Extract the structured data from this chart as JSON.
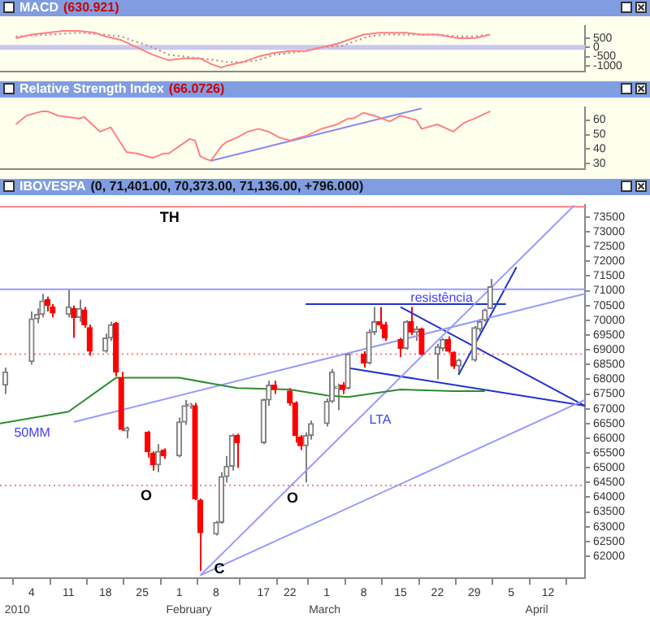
{
  "chart_data": [
    {
      "type": "line",
      "title": "MACD",
      "subtitle": "(630.921)",
      "tick_labels": "y",
      "xlim": [
        "2009-12-29",
        "2010-04-19"
      ],
      "ylim": [
        -1300,
        1150
      ],
      "yticks": [
        -1000,
        -500,
        0,
        500
      ],
      "ref_lines": [
        {
          "axis": "y",
          "value": 0,
          "color": "#c8c8f0"
        }
      ],
      "series": [
        {
          "type": "line",
          "color": "#ff8080",
          "x": [
            "2010-01-01",
            "2010-01-04",
            "2010-01-07",
            "2010-01-10",
            "2010-01-13",
            "2010-01-16",
            "2010-01-18",
            "2010-01-21",
            "2010-01-24",
            "2010-01-27",
            "2010-01-30",
            "2010-02-02",
            "2010-02-05",
            "2010-02-07",
            "2010-02-09",
            "2010-02-10",
            "2010-02-13",
            "2010-02-16",
            "2010-02-19",
            "2010-02-22",
            "2010-02-25",
            "2010-02-28",
            "2010-03-03",
            "2010-03-05",
            "2010-03-08",
            "2010-03-11",
            "2010-03-14",
            "2010-03-16",
            "2010-03-19",
            "2010-03-22",
            "2010-03-26",
            "2010-03-29",
            "2010-04-01"
          ],
          "values": [
            500,
            700,
            800,
            900,
            900,
            800,
            600,
            400,
            0,
            -400,
            -700,
            -600,
            -600,
            -900,
            -1100,
            -1000,
            -800,
            -500,
            -300,
            -200,
            -200,
            0,
            200,
            400,
            700,
            800,
            800,
            800,
            700,
            700,
            500,
            500,
            700
          ]
        },
        {
          "type": "line",
          "color": "#c08080",
          "line_style": "dotted",
          "x": [
            "2010-01-01",
            "2010-01-07",
            "2010-01-13",
            "2010-01-18",
            "2010-01-21",
            "2010-01-24",
            "2010-01-27",
            "2010-01-30",
            "2010-02-02",
            "2010-02-05",
            "2010-02-08",
            "2010-02-10",
            "2010-02-13",
            "2010-02-16",
            "2010-02-19",
            "2010-02-22",
            "2010-02-25",
            "2010-02-28",
            "2010-03-04",
            "2010-03-06",
            "2010-03-09",
            "2010-03-12",
            "2010-03-15",
            "2010-03-18",
            "2010-03-22",
            "2010-03-26",
            "2010-03-29",
            "2010-04-01"
          ],
          "values": [
            600,
            700,
            800,
            700,
            600,
            300,
            0,
            -400,
            -500,
            -600,
            -700,
            -800,
            -800,
            -700,
            -400,
            -300,
            -200,
            0,
            100,
            300,
            600,
            700,
            700,
            700,
            700,
            600,
            600,
            700
          ]
        }
      ]
    },
    {
      "type": "line",
      "title": "Relative Strength Index",
      "subtitle": "(66.0726)",
      "tick_labels": "y",
      "xlim": [
        "2009-12-29",
        "2010-04-19"
      ],
      "ylim": [
        26.5,
        68.5
      ],
      "yticks": [
        30,
        40,
        50,
        60
      ],
      "series": [
        {
          "type": "line",
          "color": "#ff8080",
          "x": [
            "2010-01-01",
            "2010-01-03",
            "2010-01-06",
            "2010-01-07",
            "2010-01-09",
            "2010-01-11",
            "2010-01-13",
            "2010-01-14",
            "2010-01-17",
            "2010-01-19",
            "2010-01-22",
            "2010-01-24",
            "2010-01-27",
            "2010-01-29",
            "2010-01-30",
            "2010-02-01",
            "2010-02-03",
            "2010-02-04",
            "2010-02-05",
            "2010-02-07",
            "2010-02-09",
            "2010-02-10",
            "2010-02-12",
            "2010-02-14",
            "2010-02-16",
            "2010-02-18",
            "2010-02-20",
            "2010-02-22",
            "2010-02-25",
            "2010-02-28",
            "2010-03-03",
            "2010-03-05",
            "2010-03-06",
            "2010-03-08",
            "2010-03-10",
            "2010-03-13",
            "2010-03-15",
            "2010-03-18",
            "2010-03-19",
            "2010-03-22",
            "2010-03-25",
            "2010-03-27",
            "2010-03-29",
            "2010-04-01"
          ],
          "values": [
            57,
            63,
            66,
            66,
            63,
            62,
            61,
            62,
            52,
            55,
            38,
            37,
            34,
            37,
            37,
            42,
            47,
            46,
            35,
            32,
            42,
            45,
            48,
            52,
            54,
            52,
            48,
            46,
            49,
            54,
            57,
            61,
            61,
            65,
            63,
            59,
            63,
            60,
            54,
            57,
            52,
            58,
            61,
            66
          ]
        },
        {
          "type": "line",
          "color": "#8888ee",
          "x": [
            "2010-02-07",
            "2010-03-19"
          ],
          "values": [
            32,
            68
          ]
        }
      ]
    },
    {
      "type": "candlestick",
      "title": "IBOVESPA",
      "subtitle": "(0, 71,401.00, 70,373.00, 71,136.00, +796.000)",
      "xlim": [
        "2009-12-29",
        "2010-04-19"
      ],
      "ylim": [
        61250,
        73900
      ],
      "yticks": [
        62000,
        62500,
        63000,
        63500,
        64000,
        64500,
        65000,
        65500,
        66000,
        66500,
        67000,
        67500,
        68000,
        68500,
        69000,
        69500,
        70000,
        70500,
        71000,
        71500,
        72000,
        72500,
        73000,
        73500
      ],
      "xticks": [
        {
          "value": "2010-01-04",
          "label": "4"
        },
        {
          "value": "2010-01-11",
          "label": "11"
        },
        {
          "value": "2010-01-18",
          "label": "18"
        },
        {
          "value": "2010-01-25",
          "label": "25"
        },
        {
          "value": "2010-02-01",
          "label": "1"
        },
        {
          "value": "2010-02-08",
          "label": "8"
        },
        {
          "value": "2010-02-17",
          "label": "17"
        },
        {
          "value": "2010-02-22",
          "label": "22"
        },
        {
          "value": "2010-03-01",
          "label": "1"
        },
        {
          "value": "2010-03-08",
          "label": "8"
        },
        {
          "value": "2010-03-15",
          "label": "15"
        },
        {
          "value": "2010-03-22",
          "label": "22"
        },
        {
          "value": "2010-03-29",
          "label": "29"
        },
        {
          "value": "2010-04-05",
          "label": "5"
        },
        {
          "value": "2010-04-12",
          "label": "12"
        },
        {
          "value": "2010-04-19",
          "label": null
        }
      ],
      "x": [
        "2009-12-30",
        "2010-01-04",
        "2010-01-05",
        "2010-01-06",
        "2010-01-07",
        "2010-01-08",
        "2010-01-11",
        "2010-01-12",
        "2010-01-13",
        "2010-01-14",
        "2010-01-15",
        "2010-01-18",
        "2010-01-19",
        "2010-01-20",
        "2010-01-21",
        "2010-01-22",
        "2010-01-26",
        "2010-01-27",
        "2010-01-28",
        "2010-01-29",
        "2010-02-01",
        "2010-02-02",
        "2010-02-03",
        "2010-02-04",
        "2010-02-05",
        "2010-02-08",
        "2010-02-09",
        "2010-02-10",
        "2010-02-11",
        "2010-02-12",
        "2010-02-17",
        "2010-02-18",
        "2010-02-19",
        "2010-02-22",
        "2010-02-23",
        "2010-02-24",
        "2010-02-25",
        "2010-02-26",
        "2010-03-01",
        "2010-03-02",
        "2010-03-03",
        "2010-03-04",
        "2010-03-05",
        "2010-03-08",
        "2010-03-09",
        "2010-03-10",
        "2010-03-11",
        "2010-03-12",
        "2010-03-15",
        "2010-03-16",
        "2010-03-17",
        "2010-03-18",
        "2010-03-19",
        "2010-03-22",
        "2010-03-23",
        "2010-03-24",
        "2010-03-25",
        "2010-03-26",
        "2010-03-29",
        "2010-03-30",
        "2010-03-31",
        "2010-04-01"
      ],
      "ohlc": [
        [
          67800,
          68400,
          67500,
          68250
        ],
        [
          68600,
          70300,
          68500,
          70050
        ],
        [
          70050,
          70400,
          69900,
          70200
        ],
        [
          70200,
          70900,
          70100,
          70650
        ],
        [
          70700,
          70800,
          70300,
          70500
        ],
        [
          70450,
          70550,
          70100,
          70250
        ],
        [
          70200,
          71050,
          70100,
          70450
        ],
        [
          70400,
          70500,
          69400,
          70100
        ],
        [
          70100,
          70700,
          69950,
          70400
        ],
        [
          70350,
          70450,
          69750,
          69850
        ],
        [
          69750,
          69850,
          68800,
          68950
        ],
        [
          68950,
          69550,
          68900,
          69400
        ],
        [
          69400,
          69950,
          69300,
          69850
        ],
        [
          69900,
          69950,
          68100,
          68250
        ],
        [
          68050,
          68250,
          66250,
          66300
        ],
        [
          66250,
          66400,
          66000,
          66350
        ],
        [
          66200,
          66250,
          65350,
          65550
        ],
        [
          65500,
          65550,
          64900,
          65100
        ],
        [
          65100,
          65800,
          64850,
          65550
        ],
        [
          65600,
          65650,
          65300,
          65400
        ],
        [
          65400,
          66700,
          65350,
          66550
        ],
        [
          66550,
          67300,
          66450,
          67100
        ],
        [
          67100,
          67200,
          67000,
          67150
        ],
        [
          67100,
          67200,
          63900,
          63950
        ],
        [
          63900,
          63950,
          61500,
          62800
        ],
        [
          62750,
          63200,
          62700,
          63150
        ],
        [
          63150,
          64850,
          63100,
          64700
        ],
        [
          64700,
          65400,
          64500,
          65050
        ],
        [
          65050,
          66150,
          64900,
          66100
        ],
        [
          66100,
          66150,
          65000,
          65850
        ],
        [
          65850,
          67350,
          65800,
          67300
        ],
        [
          67300,
          67950,
          67100,
          67800
        ],
        [
          67800,
          67950,
          67500,
          67650
        ],
        [
          67600,
          67700,
          67100,
          67200
        ],
        [
          67200,
          67250,
          65850,
          66100
        ],
        [
          66050,
          66100,
          65600,
          65750
        ],
        [
          65750,
          66200,
          64500,
          66100
        ],
        [
          66100,
          66600,
          65950,
          66500
        ],
        [
          66500,
          67350,
          66400,
          67250
        ],
        [
          67250,
          68350,
          67200,
          68250
        ],
        [
          67700,
          67850,
          66950,
          67750
        ],
        [
          67800,
          67900,
          67500,
          67650
        ],
        [
          67700,
          68900,
          67650,
          68850
        ],
        [
          68850,
          68950,
          68400,
          68550
        ],
        [
          68550,
          69700,
          68500,
          69600
        ],
        [
          69600,
          70450,
          69500,
          69950
        ],
        [
          69950,
          70450,
          69700,
          69850
        ],
        [
          69850,
          69950,
          69300,
          69400
        ],
        [
          69350,
          69400,
          68750,
          69050
        ],
        [
          69050,
          70000,
          69000,
          69950
        ],
        [
          69950,
          70450,
          69500,
          69600
        ],
        [
          69600,
          69800,
          69300,
          69700
        ],
        [
          69700,
          69750,
          68800,
          68850
        ],
        [
          68850,
          69200,
          68000,
          69100
        ],
        [
          69050,
          69400,
          68950,
          69350
        ],
        [
          69350,
          69450,
          68900,
          68950
        ],
        [
          68900,
          68950,
          68350,
          68450
        ],
        [
          68450,
          68700,
          68150,
          68650
        ],
        [
          68650,
          69800,
          68600,
          69750
        ],
        [
          69700,
          70050,
          69600,
          69950
        ],
        [
          70000,
          70400,
          69950,
          70350
        ],
        [
          70400,
          71401,
          70373,
          71136
        ]
      ],
      "colors": [
        "#808080",
        "#808080",
        "#808080",
        "#808080",
        "#ff0000",
        "#ff0000",
        "#808080",
        "#ff0000",
        "#808080",
        "#ff0000",
        "#ff0000",
        "#808080",
        "#808080",
        "#ff0000",
        "#ff0000",
        "#808080",
        "#ff0000",
        "#ff0000",
        "#808080",
        "#ff0000",
        "#808080",
        "#808080",
        "#808080",
        "#ff0000",
        "#ff0000",
        "#808080",
        "#808080",
        "#808080",
        "#808080",
        "#ff0000",
        "#808080",
        "#808080",
        "#ff0000",
        "#ff0000",
        "#ff0000",
        "#ff0000",
        "#808080",
        "#808080",
        "#808080",
        "#808080",
        "#808080",
        "#ff0000",
        "#808080",
        "#ff0000",
        "#808080",
        "#808080",
        "#ff0000",
        "#ff0000",
        "#ff0000",
        "#808080",
        "#ff0000",
        "#808080",
        "#ff0000",
        "#808080",
        "#808080",
        "#ff0000",
        "#ff0000",
        "#808080",
        "#808080",
        "#808080",
        "#808080",
        "#808080"
      ],
      "series": [
        {
          "type": "line",
          "color": "#2e8b2e",
          "x": [
            "2009-12-29",
            "2010-01-11",
            "2010-01-20",
            "2010-02-01",
            "2010-02-12",
            "2010-02-22",
            "2010-03-01",
            "2010-03-05",
            "2010-03-15",
            "2010-03-25",
            "2010-03-31"
          ],
          "values": [
            66500,
            66900,
            68050,
            68050,
            67700,
            67650,
            67450,
            67400,
            67650,
            67600,
            67600
          ]
        },
        {
          "type": "line",
          "color": "#9999ff",
          "x": [
            "2010-01-12",
            "2010-04-19"
          ],
          "values": [
            66550,
            70900
          ]
        },
        {
          "type": "line",
          "color": "#9999ff",
          "x": [
            "2010-02-05",
            "2010-04-17"
          ],
          "values": [
            61350,
            73900
          ]
        },
        {
          "type": "line",
          "color": "#9999ff",
          "x": [
            "2010-02-05",
            "2010-04-19"
          ],
          "values": [
            61350,
            67300
          ]
        },
        {
          "type": "line",
          "color": "#9999ff",
          "x": [
            "2009-12-29",
            "2010-04-19"
          ],
          "values": [
            71050,
            71050
          ]
        },
        {
          "type": "line",
          "color": "#2233cc",
          "x": [
            "2010-02-25",
            "2010-04-04"
          ],
          "values": [
            70550,
            70550
          ]
        },
        {
          "type": "line",
          "color": "#2233cc",
          "x": [
            "2010-03-15",
            "2010-04-19"
          ],
          "values": [
            70450,
            67100
          ]
        },
        {
          "type": "line",
          "color": "#2233cc",
          "x": [
            "2010-03-05",
            "2010-04-19"
          ],
          "values": [
            68380,
            67100
          ]
        },
        {
          "type": "line",
          "color": "#2233cc",
          "x": [
            "2010-03-26",
            "2010-04-06"
          ],
          "values": [
            68150,
            71800
          ]
        }
      ],
      "ref_lines": [
        {
          "axis": "y",
          "value": 73850,
          "color": "#ff8080"
        },
        {
          "axis": "y",
          "value": 68850,
          "color": "#ff8080",
          "line_style": "dotted"
        },
        {
          "axis": "y",
          "value": 64400,
          "color": "#ff8080",
          "line_style": "dotted"
        }
      ],
      "annotations": [
        "TH",
        "O",
        "O",
        "C",
        "LTA",
        "resistência",
        "50MM",
        "2010",
        "February",
        "March",
        "April"
      ]
    }
  ]
}
